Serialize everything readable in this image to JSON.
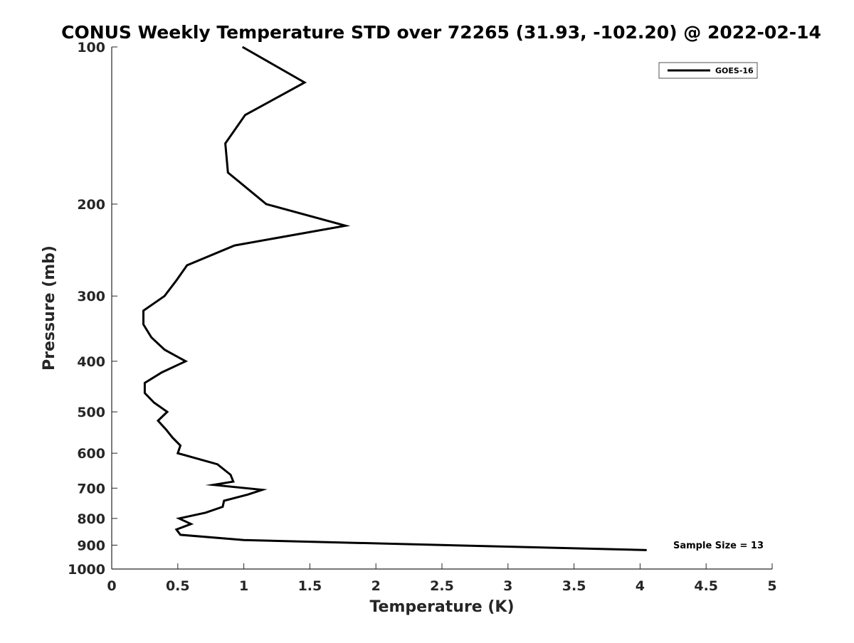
{
  "chart_data": {
    "type": "line",
    "title": "CONUS Weekly Temperature STD over 72265 (31.93, -102.20) @ 2022-02-14",
    "xlabel": "Temperature (K)",
    "ylabel": "Pressure (mb)",
    "xlim": [
      0,
      5
    ],
    "ylim": [
      1000,
      100
    ],
    "yscale": "log",
    "xticks": [
      "0",
      "0.5",
      "1",
      "1.5",
      "2",
      "2.5",
      "3",
      "3.5",
      "4",
      "4.5",
      "5"
    ],
    "yticks": [
      "100",
      "200",
      "300",
      "400",
      "500",
      "600",
      "700",
      "800",
      "900",
      "1000"
    ],
    "grid": false,
    "legend_position": "top-right",
    "annotation": "Sample Size = 13",
    "series": [
      {
        "name": "GOES-16",
        "color": "#000000",
        "points": [
          [
            0.99,
            100
          ],
          [
            1.46,
            117
          ],
          [
            1.01,
            135
          ],
          [
            0.86,
            153
          ],
          [
            0.88,
            174
          ],
          [
            1.17,
            200
          ],
          [
            1.77,
            220
          ],
          [
            0.93,
            240
          ],
          [
            0.57,
            262
          ],
          [
            0.49,
            280
          ],
          [
            0.4,
            300
          ],
          [
            0.24,
            320
          ],
          [
            0.24,
            340
          ],
          [
            0.3,
            360
          ],
          [
            0.4,
            380
          ],
          [
            0.56,
            400
          ],
          [
            0.38,
            420
          ],
          [
            0.25,
            440
          ],
          [
            0.25,
            460
          ],
          [
            0.32,
            480
          ],
          [
            0.42,
            500
          ],
          [
            0.35,
            520
          ],
          [
            0.41,
            540
          ],
          [
            0.46,
            560
          ],
          [
            0.52,
            580
          ],
          [
            0.5,
            600
          ],
          [
            0.8,
            630
          ],
          [
            0.9,
            660
          ],
          [
            0.92,
            680
          ],
          [
            0.77,
            690
          ],
          [
            1.14,
            705
          ],
          [
            1.03,
            720
          ],
          [
            0.85,
            740
          ],
          [
            0.84,
            760
          ],
          [
            0.71,
            780
          ],
          [
            0.51,
            800
          ],
          [
            0.6,
            820
          ],
          [
            0.49,
            840
          ],
          [
            0.52,
            860
          ],
          [
            1.0,
            880
          ],
          [
            4.05,
            920
          ]
        ]
      }
    ]
  }
}
